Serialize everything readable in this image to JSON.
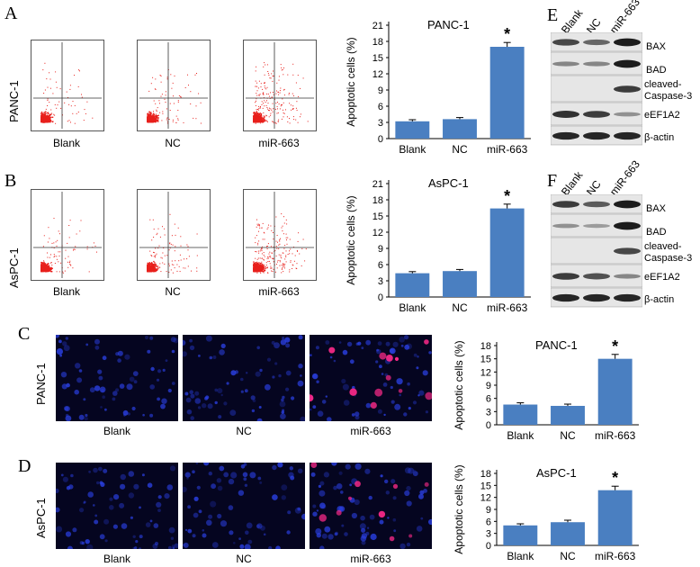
{
  "panels": {
    "A": {
      "letter": "A",
      "cell_line": "PANC-1",
      "conditions": [
        "Blank",
        "NC",
        "miR-663"
      ]
    },
    "B": {
      "letter": "B",
      "cell_line": "AsPC-1",
      "conditions": [
        "Blank",
        "NC",
        "miR-663"
      ]
    },
    "C": {
      "letter": "C",
      "cell_line": "PANC-1",
      "conditions": [
        "Blank",
        "NC",
        "miR-663"
      ]
    },
    "D": {
      "letter": "D",
      "cell_line": "AsPC-1",
      "conditions": [
        "Blank",
        "NC",
        "miR-663"
      ]
    },
    "E": {
      "letter": "E",
      "lanes": [
        "Blank",
        "NC",
        "miR-663"
      ],
      "bands": [
        "BAX",
        "BAD",
        "cleaved-",
        "Caspase-3",
        "eEF1A2",
        "β-actin"
      ]
    },
    "F": {
      "letter": "F",
      "lanes": [
        "Blank",
        "NC",
        "miR-663"
      ],
      "bands": [
        "BAX",
        "BAD",
        "cleaved-",
        "Caspase-3",
        "eEF1A2",
        "β-actin"
      ]
    }
  },
  "chart_data": [
    {
      "id": "chartA",
      "type": "bar",
      "title": "PANC-1",
      "categories": [
        "Blank",
        "NC",
        "miR-663"
      ],
      "values": [
        3.2,
        3.6,
        17.0
      ],
      "errors": [
        0.3,
        0.3,
        0.8
      ],
      "significance": [
        "",
        "",
        "*"
      ],
      "ylabel": "Apoptotic cells (%)",
      "ylim": [
        0,
        21
      ],
      "yticks": [
        0,
        3,
        6,
        9,
        12,
        15,
        18,
        21
      ]
    },
    {
      "id": "chartB",
      "type": "bar",
      "title": "AsPC-1",
      "categories": [
        "Blank",
        "NC",
        "miR-663"
      ],
      "values": [
        4.4,
        4.8,
        16.4
      ],
      "errors": [
        0.3,
        0.3,
        0.8
      ],
      "significance": [
        "",
        "",
        "*"
      ],
      "ylabel": "Apoptotic cells (%)",
      "ylim": [
        0,
        21
      ],
      "yticks": [
        0,
        3,
        6,
        9,
        12,
        15,
        18,
        21
      ]
    },
    {
      "id": "chartC",
      "type": "bar",
      "title": "PANC-1",
      "categories": [
        "Blank",
        "NC",
        "miR-663"
      ],
      "values": [
        4.6,
        4.3,
        15.0
      ],
      "errors": [
        0.4,
        0.4,
        1.0
      ],
      "significance": [
        "",
        "",
        "*"
      ],
      "ylabel": "Apoptotic cells (%)",
      "ylim": [
        0,
        18
      ],
      "yticks": [
        0,
        3,
        6,
        9,
        12,
        15,
        18
      ]
    },
    {
      "id": "chartD",
      "type": "bar",
      "title": "AsPC-1",
      "categories": [
        "Blank",
        "NC",
        "miR-663"
      ],
      "values": [
        5.0,
        5.8,
        13.8
      ],
      "errors": [
        0.4,
        0.5,
        1.0
      ],
      "significance": [
        "",
        "",
        "*"
      ],
      "ylabel": "Apoptotic cells (%)",
      "ylim": [
        0,
        18
      ],
      "yticks": [
        0,
        3,
        6,
        9,
        12,
        15,
        18
      ]
    }
  ],
  "colors": {
    "bar": "#4a7fc1",
    "dot": "#e8201c",
    "nucleus": "#2a3fe0",
    "apoptotic": "#ff2a8a"
  }
}
